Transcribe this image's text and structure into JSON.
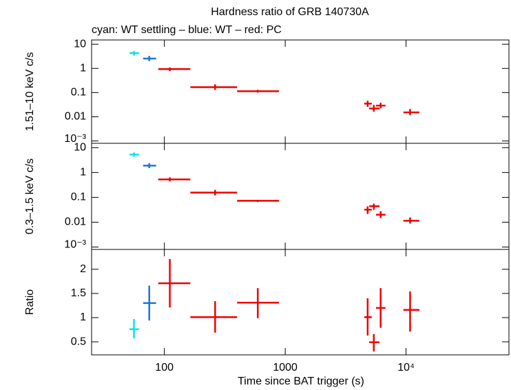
{
  "chart_data": [
    {
      "type": "errorbar",
      "title": "Hardness ratio of GRB 140730A",
      "subtitle": "cyan: WT settling – blue: WT – red: PC",
      "ylabel": "1.51–10 keV c/s",
      "log_y": true,
      "xlim": [
        25,
        71000
      ],
      "ylim": [
        0.0008,
        15
      ],
      "yticks": [
        10,
        1,
        0.1,
        0.01,
        {
          "value": 0.001,
          "label": "10⁻³"
        }
      ],
      "series": [
        {
          "color": "#00e5ee",
          "x": [
            56
          ],
          "xlo": [
            51.5
          ],
          "xhi": [
            61.6
          ],
          "values": [
            4.3
          ],
          "ylo": [
            3.4
          ],
          "yhi": [
            5.3
          ]
        },
        {
          "color": "#1874e0",
          "x": [
            75
          ],
          "xlo": [
            66.7
          ],
          "xhi": [
            85.5
          ],
          "values": [
            2.56
          ],
          "ylo": [
            2.0
          ],
          "yhi": [
            3.3
          ]
        },
        {
          "color": "#ee0000",
          "x": [
            111,
            263,
            593,
            4810,
            5410,
            6160,
            10800
          ],
          "xlo": [
            89,
            164,
            400,
            4510,
            4950,
            5640,
            9500
          ],
          "xhi": [
            164,
            400,
            889,
            5210,
            6030,
            6760,
            12900
          ],
          "values": [
            0.94,
            0.168,
            0.114,
            0.035,
            0.022,
            0.029,
            0.0152
          ],
          "ylo": [
            0.77,
            0.13,
            0.1,
            0.0256,
            0.0163,
            0.0225,
            0.0117
          ],
          "yhi": [
            1.1,
            0.22,
            0.13,
            0.046,
            0.031,
            0.038,
            0.021
          ]
        }
      ]
    },
    {
      "type": "errorbar",
      "ylabel": "0.3–1.5 keV c/s",
      "log_y": true,
      "xlim": [
        25,
        71000
      ],
      "ylim": [
        0.0008,
        15
      ],
      "yticks": [
        10,
        1,
        0.1,
        0.01,
        {
          "value": 0.001,
          "label": "10⁻³"
        }
      ],
      "series": [
        {
          "color": "#00e5ee",
          "x": [
            56
          ],
          "xlo": [
            51.5
          ],
          "xhi": [
            61.6
          ],
          "values": [
            5.3
          ],
          "ylo": [
            4.3
          ],
          "yhi": [
            6.4
          ]
        },
        {
          "color": "#1874e0",
          "x": [
            75
          ],
          "xlo": [
            66.7
          ],
          "xhi": [
            85.5
          ],
          "values": [
            1.9
          ],
          "ylo": [
            1.5
          ],
          "yhi": [
            2.4
          ]
        },
        {
          "color": "#ee0000",
          "x": [
            111,
            263,
            593,
            4810,
            5410,
            6160,
            10800
          ],
          "xlo": [
            89,
            164,
            400,
            4510,
            4950,
            5640,
            9500
          ],
          "xhi": [
            164,
            400,
            889,
            5210,
            6030,
            6760,
            12900
          ],
          "values": [
            0.53,
            0.156,
            0.073,
            0.032,
            0.044,
            0.02,
            0.0114
          ],
          "ylo": [
            0.44,
            0.12,
            0.065,
            0.0215,
            0.0316,
            0.0147,
            0.0088
          ],
          "yhi": [
            0.64,
            0.2,
            0.08,
            0.0435,
            0.056,
            0.0278,
            0.0156
          ]
        }
      ]
    },
    {
      "type": "errorbar",
      "ylabel": "Ratio",
      "xlabel": "Time since BAT trigger (s)",
      "log_y": false,
      "xlim": [
        25,
        71000
      ],
      "ylim": [
        0.23,
        2.41
      ],
      "yticks": [
        0.5,
        1,
        1.5,
        2
      ],
      "xticks": [
        100,
        1000,
        {
          "value": 10000,
          "label": "10⁴"
        }
      ],
      "series": [
        {
          "color": "#00e5ee",
          "x": [
            56
          ],
          "xlo": [
            51.5
          ],
          "xhi": [
            61.6
          ],
          "values": [
            0.76
          ],
          "ylo": [
            0.57
          ],
          "yhi": [
            0.97
          ]
        },
        {
          "color": "#1874e0",
          "x": [
            75
          ],
          "xlo": [
            66.7
          ],
          "xhi": [
            85.5
          ],
          "values": [
            1.3
          ],
          "ylo": [
            0.94
          ],
          "yhi": [
            1.66
          ]
        },
        {
          "color": "#ee0000",
          "x": [
            111,
            263,
            593,
            4810,
            5410,
            6160,
            10800
          ],
          "xlo": [
            89,
            164,
            400,
            4510,
            4950,
            5640,
            9500
          ],
          "xhi": [
            164,
            400,
            889,
            5210,
            6030,
            6760,
            12900
          ],
          "values": [
            1.71,
            1.01,
            1.31,
            1.01,
            0.49,
            1.2,
            1.16
          ],
          "ylo": [
            1.21,
            0.69,
            0.99,
            0.63,
            0.3,
            0.79,
            0.71
          ],
          "yhi": [
            2.21,
            1.34,
            1.61,
            1.4,
            0.66,
            1.61,
            1.54
          ]
        }
      ]
    }
  ]
}
